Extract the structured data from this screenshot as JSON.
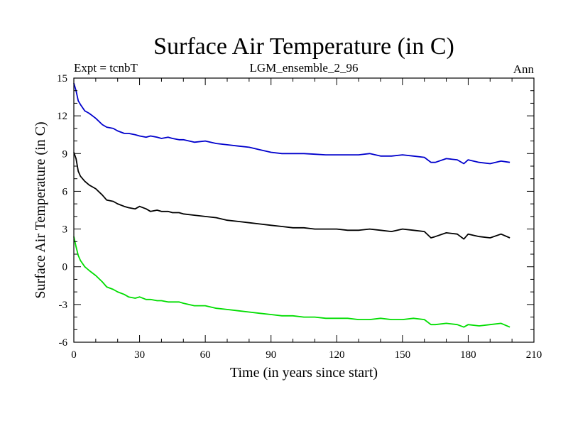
{
  "chart_data": {
    "type": "line",
    "title": "Surface Air Temperature (in C)",
    "subtitle_left": "Expt = tcnbT",
    "subtitle_center": "LGM_ensemble_2_96",
    "subtitle_right": "Ann",
    "xlabel": "Time (in years since start)",
    "ylabel": "Surface Air Temperature (in C)",
    "xlim": [
      0,
      210
    ],
    "ylim": [
      -6,
      15
    ],
    "xticks": [
      0,
      30,
      60,
      90,
      120,
      150,
      180,
      210
    ],
    "yticks": [
      -6,
      -3,
      0,
      3,
      6,
      9,
      12,
      15
    ],
    "x": [
      0,
      1,
      2,
      3,
      5,
      7,
      10,
      13,
      15,
      18,
      20,
      23,
      25,
      28,
      30,
      33,
      35,
      38,
      40,
      43,
      45,
      48,
      50,
      55,
      60,
      65,
      70,
      75,
      80,
      85,
      90,
      95,
      100,
      105,
      110,
      115,
      120,
      125,
      130,
      135,
      140,
      145,
      150,
      155,
      160,
      163,
      165,
      170,
      175,
      178,
      180,
      185,
      190,
      195,
      199
    ],
    "series": [
      {
        "name": "blue",
        "color": "#0000cc",
        "values": [
          14.6,
          14.0,
          13.2,
          12.9,
          12.4,
          12.2,
          11.8,
          11.3,
          11.1,
          11.0,
          10.8,
          10.6,
          10.6,
          10.5,
          10.4,
          10.3,
          10.4,
          10.3,
          10.2,
          10.3,
          10.2,
          10.1,
          10.1,
          9.9,
          10.0,
          9.8,
          9.7,
          9.6,
          9.5,
          9.3,
          9.1,
          9.0,
          9.0,
          9.0,
          8.95,
          8.9,
          8.9,
          8.9,
          8.9,
          9.0,
          8.8,
          8.8,
          8.9,
          8.8,
          8.7,
          8.3,
          8.3,
          8.6,
          8.5,
          8.2,
          8.5,
          8.3,
          8.2,
          8.4,
          8.3
        ]
      },
      {
        "name": "black",
        "color": "#000000",
        "values": [
          9.1,
          8.6,
          7.6,
          7.2,
          6.8,
          6.5,
          6.2,
          5.7,
          5.3,
          5.2,
          5.0,
          4.8,
          4.7,
          4.6,
          4.8,
          4.6,
          4.4,
          4.5,
          4.4,
          4.4,
          4.3,
          4.3,
          4.2,
          4.1,
          4.0,
          3.9,
          3.7,
          3.6,
          3.5,
          3.4,
          3.3,
          3.2,
          3.1,
          3.1,
          3.0,
          3.0,
          3.0,
          2.9,
          2.9,
          3.0,
          2.9,
          2.8,
          3.0,
          2.9,
          2.8,
          2.3,
          2.4,
          2.7,
          2.6,
          2.2,
          2.6,
          2.4,
          2.3,
          2.6,
          2.3
        ]
      },
      {
        "name": "green",
        "color": "#00dd00",
        "values": [
          2.4,
          1.6,
          0.9,
          0.5,
          0.0,
          -0.3,
          -0.7,
          -1.2,
          -1.6,
          -1.8,
          -2.0,
          -2.2,
          -2.4,
          -2.5,
          -2.4,
          -2.6,
          -2.6,
          -2.7,
          -2.7,
          -2.8,
          -2.8,
          -2.8,
          -2.9,
          -3.1,
          -3.1,
          -3.3,
          -3.4,
          -3.5,
          -3.6,
          -3.7,
          -3.8,
          -3.9,
          -3.9,
          -4.0,
          -4.0,
          -4.1,
          -4.1,
          -4.1,
          -4.2,
          -4.2,
          -4.1,
          -4.2,
          -4.2,
          -4.1,
          -4.2,
          -4.6,
          -4.6,
          -4.5,
          -4.6,
          -4.8,
          -4.6,
          -4.7,
          -4.6,
          -4.5,
          -4.8
        ]
      }
    ]
  }
}
